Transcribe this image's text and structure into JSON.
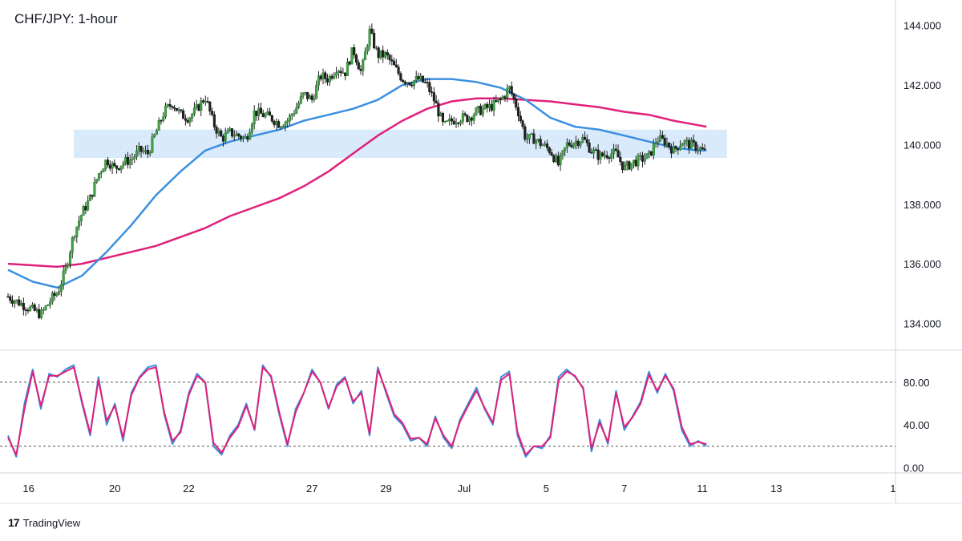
{
  "chart_data": [
    {
      "type": "candlestick",
      "title": "CHF/JPY: 1-hour",
      "y_axis": {
        "ticks": [
          "144.000",
          "142.000",
          "140.000",
          "138.000",
          "136.000",
          "134.000"
        ],
        "tick_values": [
          144,
          142,
          140,
          138,
          136,
          134
        ],
        "range": [
          133.1,
          144.85
        ],
        "side": "right"
      },
      "x_axis": {
        "ticks": [
          "16",
          "20",
          "22",
          "27",
          "29",
          "Jul",
          "5",
          "7",
          "11",
          "13",
          "1"
        ]
      },
      "support_resistance_zone": {
        "low": 139.55,
        "high": 140.5,
        "color": "#d9ebfb"
      },
      "price_path": [
        [
          0,
          134.9
        ],
        [
          2,
          134.6
        ],
        [
          4,
          134.3
        ],
        [
          5.5,
          134.9
        ],
        [
          6,
          135.0
        ],
        [
          7,
          135.8
        ],
        [
          8,
          137.0
        ],
        [
          9,
          137.7
        ],
        [
          10,
          138.2
        ],
        [
          11,
          139.0
        ],
        [
          12,
          139.5
        ],
        [
          13,
          139.2
        ],
        [
          14,
          139.4
        ],
        [
          15,
          139.5
        ],
        [
          16,
          139.8
        ],
        [
          17,
          139.7
        ],
        [
          18,
          140.4
        ],
        [
          19,
          141.1
        ],
        [
          20,
          141.4
        ],
        [
          21,
          141.0
        ],
        [
          22,
          140.9
        ],
        [
          23,
          141.2
        ],
        [
          24,
          141.6
        ],
        [
          25,
          140.7
        ],
        [
          26,
          140.2
        ],
        [
          27,
          140.4
        ],
        [
          28,
          140.3
        ],
        [
          29,
          140.2
        ],
        [
          30,
          141.1
        ],
        [
          31,
          141.0
        ],
        [
          32,
          140.9
        ],
        [
          33,
          140.7
        ],
        [
          34,
          140.8
        ],
        [
          35,
          141.2
        ],
        [
          36,
          141.7
        ],
        [
          37,
          141.5
        ],
        [
          38,
          142.3
        ],
        [
          39,
          142.2
        ],
        [
          40,
          142.6
        ],
        [
          41,
          142.4
        ],
        [
          42,
          143.2
        ],
        [
          43,
          142.4
        ],
        [
          44,
          143.8
        ],
        [
          45,
          143.0
        ],
        [
          46,
          143.0
        ],
        [
          47,
          142.6
        ],
        [
          48,
          142.2
        ],
        [
          49,
          142.1
        ],
        [
          50,
          142.2
        ],
        [
          51,
          142.0
        ],
        [
          52,
          141.4
        ],
        [
          53,
          140.6
        ],
        [
          54,
          140.8
        ],
        [
          55,
          140.9
        ],
        [
          56,
          140.9
        ],
        [
          57,
          141.1
        ],
        [
          58,
          141.2
        ],
        [
          59,
          141.3
        ],
        [
          60,
          141.5
        ],
        [
          61,
          141.9
        ],
        [
          62,
          141.2
        ],
        [
          63,
          140.2
        ],
        [
          64,
          140.2
        ],
        [
          65,
          140.0
        ],
        [
          66,
          139.8
        ],
        [
          67,
          139.3
        ],
        [
          68,
          140.0
        ],
        [
          69,
          140.1
        ],
        [
          70,
          140.2
        ],
        [
          71,
          139.8
        ],
        [
          72,
          139.6
        ],
        [
          73,
          139.7
        ],
        [
          74,
          139.7
        ],
        [
          75,
          139.2
        ],
        [
          76,
          139.4
        ],
        [
          77,
          139.5
        ],
        [
          78,
          139.6
        ],
        [
          79,
          140.2
        ],
        [
          80,
          140.1
        ],
        [
          81,
          139.8
        ],
        [
          82,
          140.1
        ],
        [
          83,
          140.0
        ],
        [
          84,
          139.9
        ],
        [
          85,
          139.7
        ]
      ],
      "sma_blue": [
        [
          0,
          135.8
        ],
        [
          3,
          135.4
        ],
        [
          6,
          135.2
        ],
        [
          9,
          135.6
        ],
        [
          12,
          136.4
        ],
        [
          15,
          137.3
        ],
        [
          18,
          138.3
        ],
        [
          21,
          139.1
        ],
        [
          24,
          139.8
        ],
        [
          27,
          140.1
        ],
        [
          30,
          140.3
        ],
        [
          33,
          140.5
        ],
        [
          36,
          140.8
        ],
        [
          39,
          141.0
        ],
        [
          42,
          141.2
        ],
        [
          45,
          141.5
        ],
        [
          48,
          142.0
        ],
        [
          51,
          142.2
        ],
        [
          54,
          142.2
        ],
        [
          57,
          142.1
        ],
        [
          60,
          141.9
        ],
        [
          63,
          141.5
        ],
        [
          66,
          140.9
        ],
        [
          69,
          140.6
        ],
        [
          72,
          140.5
        ],
        [
          75,
          140.3
        ],
        [
          78,
          140.1
        ],
        [
          81,
          139.9
        ],
        [
          84,
          139.8
        ],
        [
          85,
          139.8
        ]
      ],
      "sma_magenta": [
        [
          0,
          136.0
        ],
        [
          3,
          135.95
        ],
        [
          6,
          135.9
        ],
        [
          9,
          136.0
        ],
        [
          12,
          136.2
        ],
        [
          15,
          136.4
        ],
        [
          18,
          136.6
        ],
        [
          21,
          136.9
        ],
        [
          24,
          137.2
        ],
        [
          27,
          137.6
        ],
        [
          30,
          137.9
        ],
        [
          33,
          138.2
        ],
        [
          36,
          138.6
        ],
        [
          39,
          139.1
        ],
        [
          42,
          139.7
        ],
        [
          45,
          140.3
        ],
        [
          48,
          140.8
        ],
        [
          51,
          141.2
        ],
        [
          54,
          141.45
        ],
        [
          57,
          141.55
        ],
        [
          60,
          141.55
        ],
        [
          63,
          141.5
        ],
        [
          66,
          141.45
        ],
        [
          69,
          141.35
        ],
        [
          72,
          141.25
        ],
        [
          75,
          141.1
        ],
        [
          78,
          141.0
        ],
        [
          81,
          140.8
        ],
        [
          84,
          140.65
        ],
        [
          85,
          140.6
        ]
      ]
    },
    {
      "type": "line",
      "y_axis": {
        "ticks": [
          "80.00",
          "40.00",
          "0.00"
        ],
        "tick_values": [
          80,
          40,
          0
        ],
        "range": [
          -5,
          110
        ],
        "levels": [
          80,
          20
        ]
      },
      "series": [
        {
          "color": "#3b8fe0",
          "values": [
            [
              0,
              30
            ],
            [
              1,
              10
            ],
            [
              2,
              60
            ],
            [
              3,
              92
            ],
            [
              4,
              55
            ],
            [
              5,
              88
            ],
            [
              6,
              85
            ],
            [
              7,
              92
            ],
            [
              8,
              96
            ],
            [
              9,
              60
            ],
            [
              10,
              30
            ],
            [
              11,
              85
            ],
            [
              12,
              40
            ],
            [
              13,
              60
            ],
            [
              14,
              25
            ],
            [
              15,
              70
            ],
            [
              16,
              85
            ],
            [
              17,
              94
            ],
            [
              18,
              96
            ],
            [
              19,
              50
            ],
            [
              20,
              22
            ],
            [
              21,
              35
            ],
            [
              22,
              70
            ],
            [
              23,
              88
            ],
            [
              24,
              80
            ],
            [
              25,
              20
            ],
            [
              26,
              12
            ],
            [
              27,
              30
            ],
            [
              28,
              40
            ],
            [
              29,
              60
            ],
            [
              30,
              35
            ],
            [
              31,
              96
            ],
            [
              32,
              85
            ],
            [
              33,
              50
            ],
            [
              34,
              20
            ],
            [
              35,
              55
            ],
            [
              36,
              70
            ],
            [
              37,
              92
            ],
            [
              38,
              80
            ],
            [
              39,
              55
            ],
            [
              40,
              78
            ],
            [
              41,
              85
            ],
            [
              42,
              60
            ],
            [
              43,
              72
            ],
            [
              44,
              30
            ],
            [
              45,
              94
            ],
            [
              46,
              70
            ],
            [
              47,
              48
            ],
            [
              48,
              40
            ],
            [
              49,
              25
            ],
            [
              50,
              28
            ],
            [
              51,
              20
            ],
            [
              52,
              48
            ],
            [
              53,
              28
            ],
            [
              54,
              18
            ],
            [
              55,
              45
            ],
            [
              56,
              60
            ],
            [
              57,
              75
            ],
            [
              58,
              55
            ],
            [
              59,
              40
            ],
            [
              60,
              85
            ],
            [
              61,
              90
            ],
            [
              62,
              30
            ],
            [
              63,
              10
            ],
            [
              64,
              20
            ],
            [
              65,
              18
            ],
            [
              66,
              30
            ],
            [
              67,
              85
            ],
            [
              68,
              92
            ],
            [
              69,
              85
            ],
            [
              70,
              75
            ],
            [
              71,
              15
            ],
            [
              72,
              45
            ],
            [
              73,
              22
            ],
            [
              74,
              72
            ],
            [
              75,
              35
            ],
            [
              76,
              48
            ],
            [
              77,
              62
            ],
            [
              78,
              90
            ],
            [
              79,
              70
            ],
            [
              80,
              88
            ],
            [
              81,
              72
            ],
            [
              82,
              35
            ],
            [
              83,
              20
            ],
            [
              84,
              25
            ],
            [
              85,
              20
            ]
          ]
        },
        {
          "color": "#e0207a",
          "values": [
            [
              0,
              28
            ],
            [
              1,
              12
            ],
            [
              2,
              55
            ],
            [
              3,
              90
            ],
            [
              4,
              58
            ],
            [
              5,
              86
            ],
            [
              6,
              86
            ],
            [
              7,
              90
            ],
            [
              8,
              94
            ],
            [
              9,
              62
            ],
            [
              10,
              32
            ],
            [
              11,
              82
            ],
            [
              12,
              44
            ],
            [
              13,
              58
            ],
            [
              14,
              28
            ],
            [
              15,
              68
            ],
            [
              16,
              84
            ],
            [
              17,
              92
            ],
            [
              18,
              94
            ],
            [
              19,
              52
            ],
            [
              20,
              25
            ],
            [
              21,
              33
            ],
            [
              22,
              68
            ],
            [
              23,
              86
            ],
            [
              24,
              80
            ],
            [
              25,
              23
            ],
            [
              26,
              14
            ],
            [
              27,
              28
            ],
            [
              28,
              38
            ],
            [
              29,
              58
            ],
            [
              30,
              36
            ],
            [
              31,
              94
            ],
            [
              32,
              86
            ],
            [
              33,
              52
            ],
            [
              34,
              22
            ],
            [
              35,
              52
            ],
            [
              36,
              70
            ],
            [
              37,
              90
            ],
            [
              38,
              80
            ],
            [
              39,
              56
            ],
            [
              40,
              76
            ],
            [
              41,
              84
            ],
            [
              42,
              62
            ],
            [
              43,
              70
            ],
            [
              44,
              32
            ],
            [
              45,
              92
            ],
            [
              46,
              72
            ],
            [
              47,
              50
            ],
            [
              48,
              42
            ],
            [
              49,
              27
            ],
            [
              50,
              28
            ],
            [
              51,
              22
            ],
            [
              52,
              46
            ],
            [
              53,
              30
            ],
            [
              54,
              20
            ],
            [
              55,
              43
            ],
            [
              56,
              58
            ],
            [
              57,
              72
            ],
            [
              58,
              56
            ],
            [
              59,
              42
            ],
            [
              60,
              82
            ],
            [
              61,
              88
            ],
            [
              62,
              33
            ],
            [
              63,
              12
            ],
            [
              64,
              20
            ],
            [
              65,
              20
            ],
            [
              66,
              28
            ],
            [
              67,
              82
            ],
            [
              68,
              90
            ],
            [
              69,
              86
            ],
            [
              70,
              74
            ],
            [
              71,
              18
            ],
            [
              72,
              42
            ],
            [
              73,
              24
            ],
            [
              74,
              70
            ],
            [
              75,
              38
            ],
            [
              76,
              47
            ],
            [
              77,
              60
            ],
            [
              78,
              87
            ],
            [
              79,
              72
            ],
            [
              80,
              86
            ],
            [
              81,
              74
            ],
            [
              82,
              38
            ],
            [
              83,
              22
            ],
            [
              84,
              24
            ],
            [
              85,
              22
            ]
          ]
        }
      ]
    }
  ],
  "branding": {
    "logo_glyph": "17",
    "name": "TradingView"
  }
}
